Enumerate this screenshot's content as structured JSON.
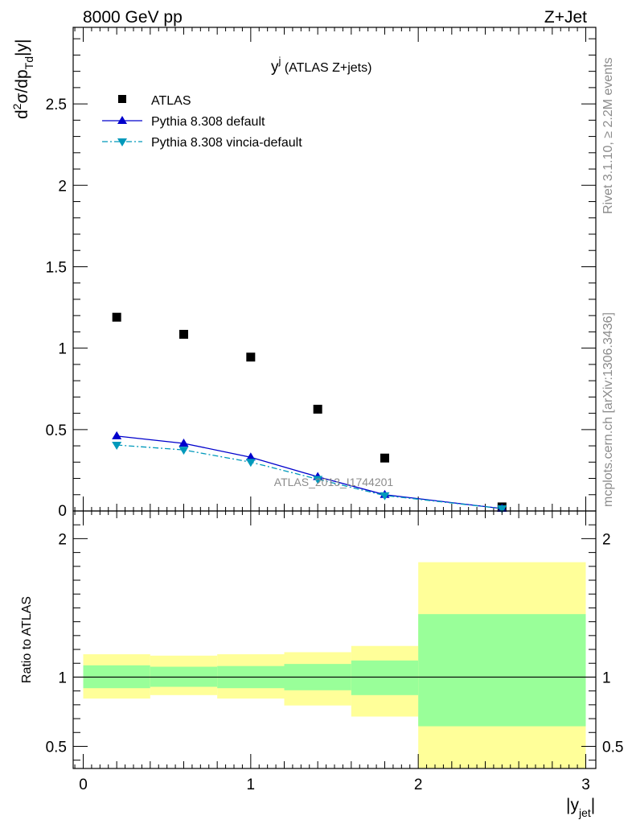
{
  "header": {
    "left": "8000 GeV pp",
    "right": "Z+Jet"
  },
  "side_labels": {
    "rivet": "Rivet 3.1.10, ≥ 2.2M events",
    "mcplots": "mcplots.cern.ch [arXiv:1306.3436]"
  },
  "watermark": "ATLAS_2013_I1744201",
  "chart_data": [
    {
      "type": "scatter",
      "title": "y^j (ATLAS Z+jets)",
      "title_main": "y",
      "title_sup": "j",
      "title_rest": " (ATLAS Z+jets)",
      "ylabel": "d²σ/dp_Td|y|",
      "ylabel_parts": {
        "a": "d",
        "sup": "2",
        "b": "σ/dp",
        "sub": "Td",
        "c": "|y|"
      },
      "xlim": [
        -0.06,
        3.06
      ],
      "ylim": [
        0,
        2.97
      ],
      "yticks": [
        0.5,
        1,
        1.5,
        2,
        2.5
      ],
      "ytick_labels": [
        "0.5",
        "1",
        "1.5",
        "2",
        "2.5"
      ],
      "y_bottom_label": "0",
      "legend": {
        "placement": "top-left"
      },
      "series": [
        {
          "name": "ATLAS",
          "marker": "square",
          "color": "#000000",
          "x": [
            0.2,
            0.6,
            1.0,
            1.4,
            1.8,
            2.5
          ],
          "y": [
            1.19,
            1.085,
            0.945,
            0.625,
            0.325,
            0.025
          ]
        },
        {
          "name": "Pythia 8.308 default",
          "marker": "triangle-up",
          "line": "solid",
          "color": "#0000cc",
          "x": [
            0.2,
            0.6,
            1.0,
            1.4,
            1.8,
            2.5
          ],
          "y": [
            0.46,
            0.415,
            0.33,
            0.21,
            0.1,
            0.015
          ]
        },
        {
          "name": "Pythia 8.308 vincia-default",
          "marker": "triangle-down",
          "line": "dashdot",
          "color": "#0099bb",
          "x": [
            0.2,
            0.6,
            1.0,
            1.4,
            1.8,
            2.5
          ],
          "y": [
            0.405,
            0.375,
            0.3,
            0.195,
            0.095,
            0.015
          ]
        }
      ]
    },
    {
      "type": "area",
      "ylabel": "Ratio to ATLAS",
      "xlabel": "|y_jet|",
      "xlabel_parts": {
        "a": "|y",
        "sub": "jet",
        "b": "|"
      },
      "xlim": [
        -0.06,
        3.06
      ],
      "ylim": [
        0.34,
        2.2
      ],
      "xticks": [
        0,
        1,
        2,
        3
      ],
      "xtick_labels": [
        "0",
        "1",
        "2",
        "3"
      ],
      "yticks": [
        0.5,
        1,
        2
      ],
      "ytick_labels": [
        "0.5",
        "1",
        "2"
      ],
      "reference_line": 1,
      "bins": [
        {
          "x0": 0.0,
          "x1": 0.4,
          "stat_lo": 0.92,
          "stat_hi": 1.085,
          "tot_lo": 0.845,
          "tot_hi": 1.165
        },
        {
          "x0": 0.4,
          "x1": 0.8,
          "stat_lo": 0.93,
          "stat_hi": 1.075,
          "tot_lo": 0.87,
          "tot_hi": 1.155
        },
        {
          "x0": 0.8,
          "x1": 1.2,
          "stat_lo": 0.92,
          "stat_hi": 1.08,
          "tot_lo": 0.845,
          "tot_hi": 1.165
        },
        {
          "x0": 1.2,
          "x1": 1.6,
          "stat_lo": 0.905,
          "stat_hi": 1.095,
          "tot_lo": 0.795,
          "tot_hi": 1.18
        },
        {
          "x0": 1.6,
          "x1": 2.0,
          "stat_lo": 0.87,
          "stat_hi": 1.12,
          "tot_lo": 0.715,
          "tot_hi": 1.225
        },
        {
          "x0": 2.0,
          "x1": 3.0,
          "stat_lo": 0.645,
          "stat_hi": 1.455,
          "tot_lo": 0.34,
          "tot_hi": 1.83
        }
      ],
      "band_colors": {
        "stat": "#99ff99",
        "total": "#ffff99"
      }
    }
  ]
}
